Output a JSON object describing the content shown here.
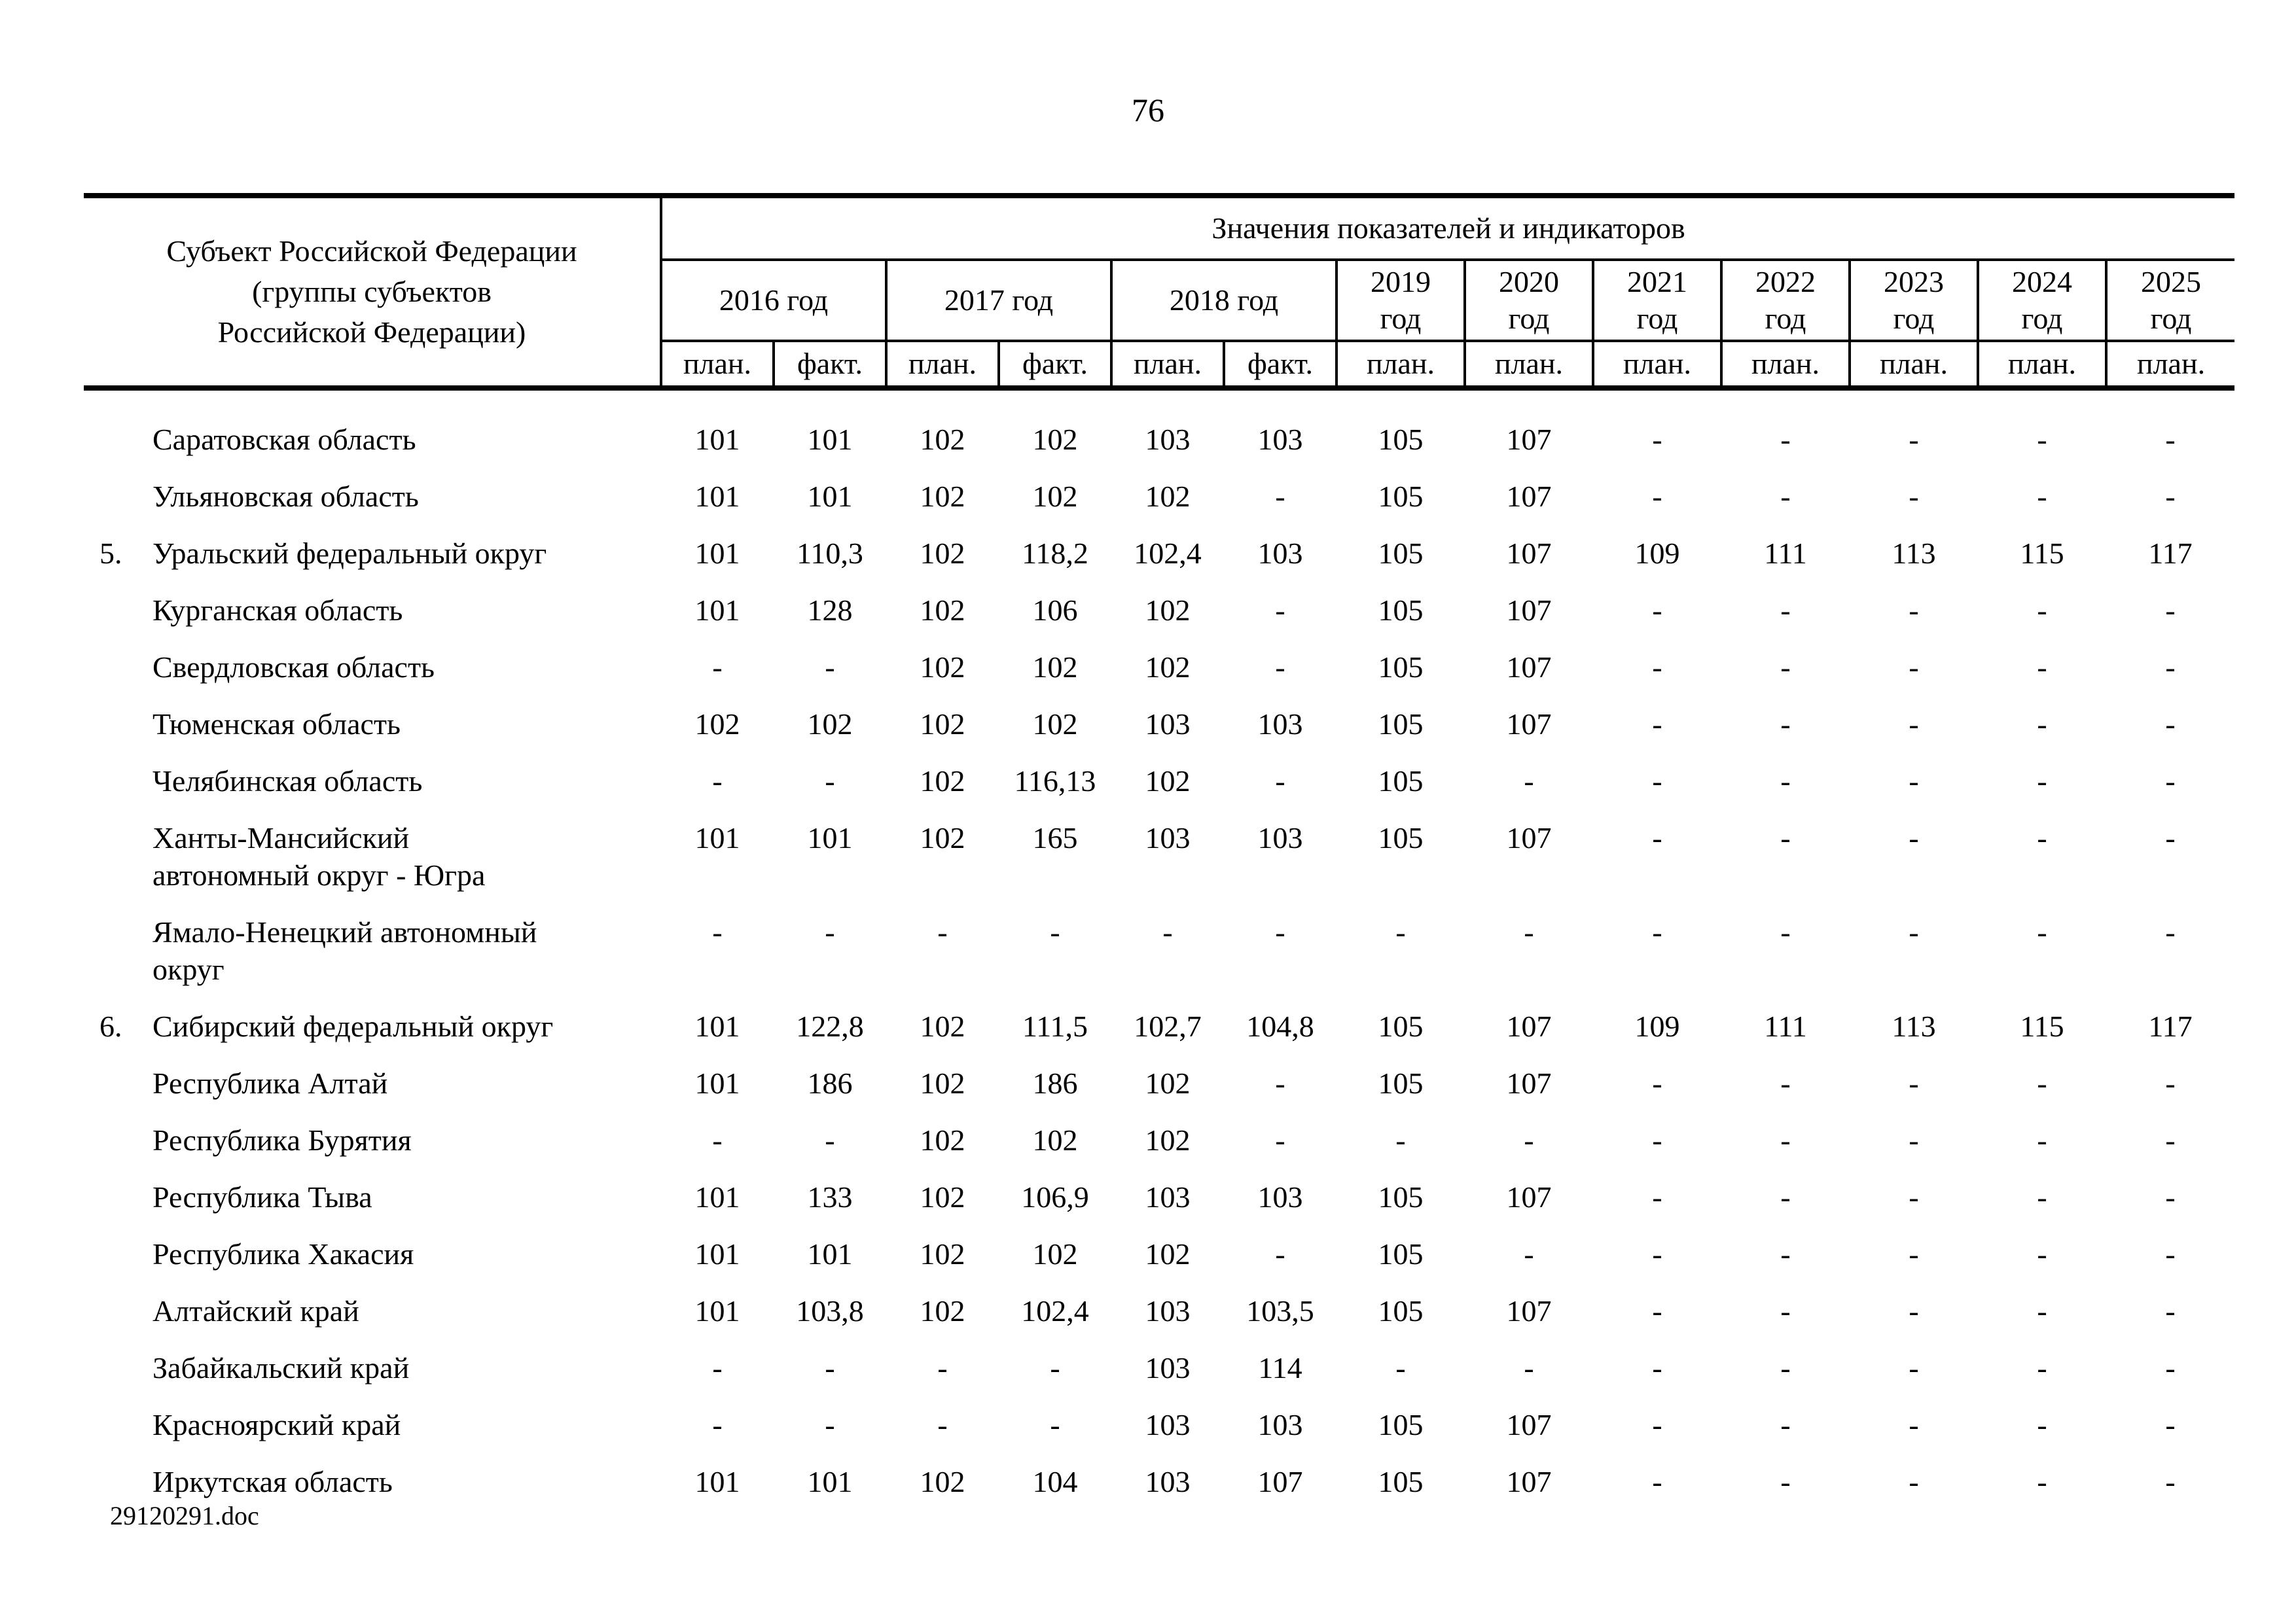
{
  "page_number": "76",
  "footer_filename": "29120291.doc",
  "table": {
    "subject_header": "Субъект Российской Федерации\n(группы субъектов\nРоссийской Федерации)",
    "values_header": "Значения показателей и индикаторов",
    "year_columns": [
      {
        "label": "2016 год",
        "span": 2
      },
      {
        "label": "2017 год",
        "span": 2
      },
      {
        "label": "2018 год",
        "span": 2
      },
      {
        "label": "2019 год",
        "span": 1
      },
      {
        "label": "2020 год",
        "span": 1
      },
      {
        "label": "2021 год",
        "span": 1
      },
      {
        "label": "2022 год",
        "span": 1
      },
      {
        "label": "2023 год",
        "span": 1
      },
      {
        "label": "2024 год",
        "span": 1
      },
      {
        "label": "2025 год",
        "span": 1
      }
    ],
    "subcolumns": [
      "план.",
      "факт.",
      "план.",
      "факт.",
      "план.",
      "факт.",
      "план.",
      "план.",
      "план.",
      "план.",
      "план.",
      "план.",
      "план."
    ],
    "rows": [
      {
        "num": "",
        "name": "Саратовская область",
        "values": [
          "101",
          "101",
          "102",
          "102",
          "103",
          "103",
          "105",
          "107",
          "-",
          "-",
          "-",
          "-",
          "-"
        ]
      },
      {
        "num": "",
        "name": "Ульяновская область",
        "values": [
          "101",
          "101",
          "102",
          "102",
          "102",
          "-",
          "105",
          "107",
          "-",
          "-",
          "-",
          "-",
          "-"
        ]
      },
      {
        "num": "5.",
        "name": "Уральский федеральный округ",
        "values": [
          "101",
          "110,3",
          "102",
          "118,2",
          "102,4",
          "103",
          "105",
          "107",
          "109",
          "111",
          "113",
          "115",
          "117"
        ]
      },
      {
        "num": "",
        "name": "Курганская область",
        "values": [
          "101",
          "128",
          "102",
          "106",
          "102",
          "-",
          "105",
          "107",
          "-",
          "-",
          "-",
          "-",
          "-"
        ]
      },
      {
        "num": "",
        "name": "Свердловская область",
        "values": [
          "-",
          "-",
          "102",
          "102",
          "102",
          "-",
          "105",
          "107",
          "-",
          "-",
          "-",
          "-",
          "-"
        ]
      },
      {
        "num": "",
        "name": "Тюменская область",
        "values": [
          "102",
          "102",
          "102",
          "102",
          "103",
          "103",
          "105",
          "107",
          "-",
          "-",
          "-",
          "-",
          "-"
        ]
      },
      {
        "num": "",
        "name": "Челябинская область",
        "values": [
          "-",
          "-",
          "102",
          "116,13",
          "102",
          "-",
          "105",
          "-",
          "-",
          "-",
          "-",
          "-",
          "-"
        ]
      },
      {
        "num": "",
        "name": "Ханты-Мансийский\nавтономный округ - Югра",
        "values": [
          "101",
          "101",
          "102",
          "165",
          "103",
          "103",
          "105",
          "107",
          "-",
          "-",
          "-",
          "-",
          "-"
        ]
      },
      {
        "num": "",
        "name": "Ямало-Ненецкий автономный\nокруг",
        "values": [
          "-",
          "-",
          "-",
          "-",
          "-",
          "-",
          "-",
          "-",
          "-",
          "-",
          "-",
          "-",
          "-"
        ]
      },
      {
        "num": "6.",
        "name": "Сибирский федеральный округ",
        "values": [
          "101",
          "122,8",
          "102",
          "111,5",
          "102,7",
          "104,8",
          "105",
          "107",
          "109",
          "111",
          "113",
          "115",
          "117"
        ]
      },
      {
        "num": "",
        "name": "Республика Алтай",
        "values": [
          "101",
          "186",
          "102",
          "186",
          "102",
          "-",
          "105",
          "107",
          "-",
          "-",
          "-",
          "-",
          "-"
        ]
      },
      {
        "num": "",
        "name": "Республика Бурятия",
        "values": [
          "-",
          "-",
          "102",
          "102",
          "102",
          "-",
          "-",
          "-",
          "-",
          "-",
          "-",
          "-",
          "-"
        ]
      },
      {
        "num": "",
        "name": "Республика Тыва",
        "values": [
          "101",
          "133",
          "102",
          "106,9",
          "103",
          "103",
          "105",
          "107",
          "-",
          "-",
          "-",
          "-",
          "-"
        ]
      },
      {
        "num": "",
        "name": "Республика Хакасия",
        "values": [
          "101",
          "101",
          "102",
          "102",
          "102",
          "-",
          "105",
          "-",
          "-",
          "-",
          "-",
          "-",
          "-"
        ]
      },
      {
        "num": "",
        "name": "Алтайский край",
        "values": [
          "101",
          "103,8",
          "102",
          "102,4",
          "103",
          "103,5",
          "105",
          "107",
          "-",
          "-",
          "-",
          "-",
          "-"
        ]
      },
      {
        "num": "",
        "name": "Забайкальский край",
        "values": [
          "-",
          "-",
          "-",
          "-",
          "103",
          "114",
          "-",
          "-",
          "-",
          "-",
          "-",
          "-",
          "-"
        ]
      },
      {
        "num": "",
        "name": "Красноярский край",
        "values": [
          "-",
          "-",
          "-",
          "-",
          "103",
          "103",
          "105",
          "107",
          "-",
          "-",
          "-",
          "-",
          "-"
        ]
      },
      {
        "num": "",
        "name": "Иркутская область",
        "values": [
          "101",
          "101",
          "102",
          "104",
          "103",
          "107",
          "105",
          "107",
          "-",
          "-",
          "-",
          "-",
          "-"
        ]
      }
    ]
  }
}
